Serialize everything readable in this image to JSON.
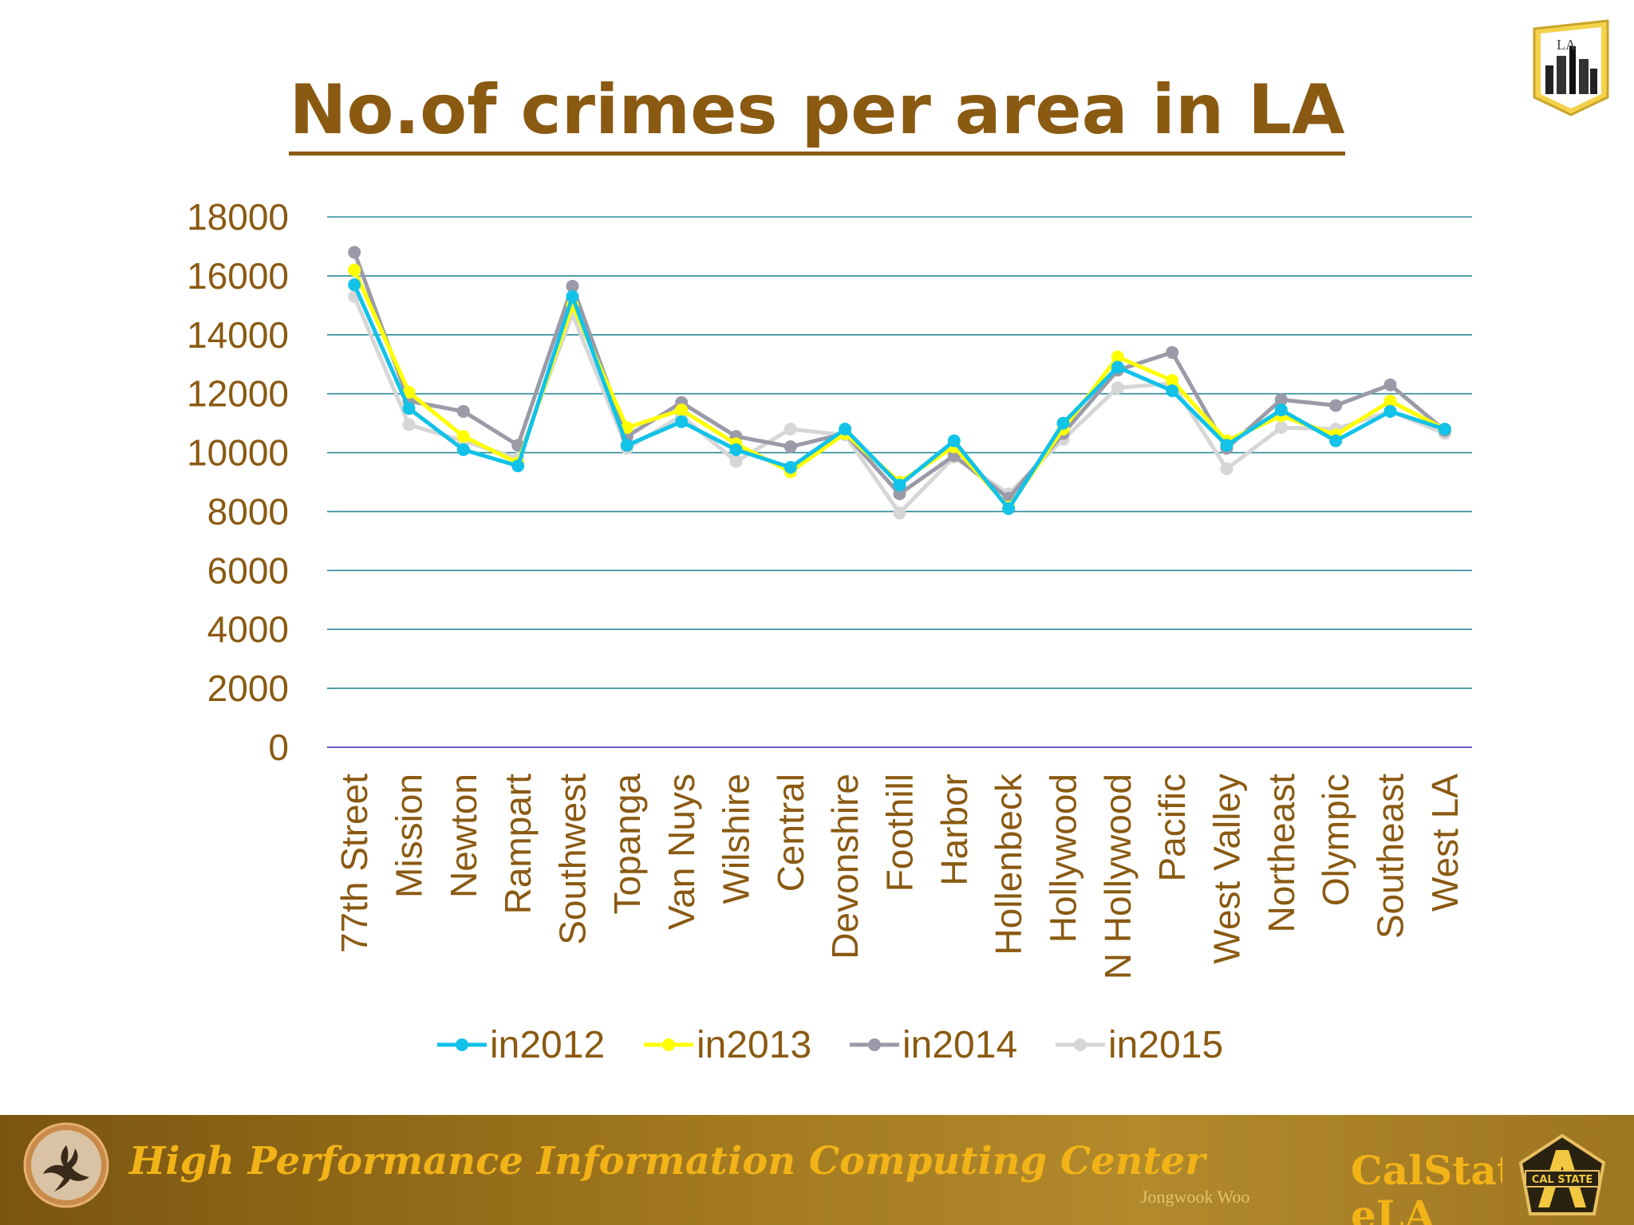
{
  "slide": {
    "title": "No.of crimes per area in LA"
  },
  "footer": {
    "center_name": "High Performance Information Computing Center",
    "author": "Jongwook Woo",
    "brand": "CalStat eLA",
    "logo_text": "CAL STATE",
    "corner_logo_text": "LA"
  },
  "colors": {
    "title": "#8a5a12",
    "axis_text": "#8a5a12",
    "gridline": "#2a8a9a",
    "baseline": "#6a5acd",
    "in2012": "#12c2e9",
    "in2013": "#ffff00",
    "in2014": "#9a9aa8",
    "in2015": "#d6d6d6"
  },
  "chart_data": {
    "type": "line",
    "title": "",
    "xlabel": "",
    "ylabel": "",
    "ylim": [
      0,
      18000
    ],
    "yticks": [
      0,
      2000,
      4000,
      6000,
      8000,
      10000,
      12000,
      14000,
      16000,
      18000
    ],
    "grid": true,
    "legend_position": "bottom",
    "categories": [
      "77th Street",
      "Mission",
      "Newton",
      "Rampart",
      "Southwest",
      "Topanga",
      "Van Nuys",
      "Wilshire",
      "Central",
      "Devonshire",
      "Foothill",
      "Harbor",
      "Hollenbeck",
      "Hollywood",
      "N Hollywood",
      "Pacific",
      "West Valley",
      "Northeast",
      "Olympic",
      "Southeast",
      "West LA"
    ],
    "series": [
      {
        "name": "in2012",
        "values": [
          15700,
          11500,
          10100,
          9550,
          15300,
          10250,
          11050,
          10100,
          9500,
          10800,
          8900,
          10400,
          8100,
          11000,
          12900,
          12100,
          10250,
          11450,
          10400,
          11400,
          10800
        ]
      },
      {
        "name": "in2013",
        "values": [
          16200,
          12050,
          10550,
          9650,
          15000,
          10850,
          11450,
          10300,
          9350,
          10650,
          9000,
          10200,
          8150,
          10800,
          13250,
          12450,
          10400,
          11250,
          10600,
          11750,
          10800
        ]
      },
      {
        "name": "in2014",
        "values": [
          16800,
          11750,
          11400,
          10250,
          15650,
          10550,
          11700,
          10550,
          10200,
          10650,
          8600,
          9900,
          8450,
          10650,
          12800,
          13400,
          10150,
          11800,
          11600,
          12300,
          10750
        ]
      },
      {
        "name": "in2015",
        "values": [
          15300,
          10950,
          10400,
          9800,
          14700,
          10150,
          11250,
          9700,
          10800,
          10600,
          7950,
          9850,
          8600,
          10450,
          12200,
          12350,
          9450,
          10850,
          10800,
          11400,
          10650
        ]
      }
    ]
  }
}
